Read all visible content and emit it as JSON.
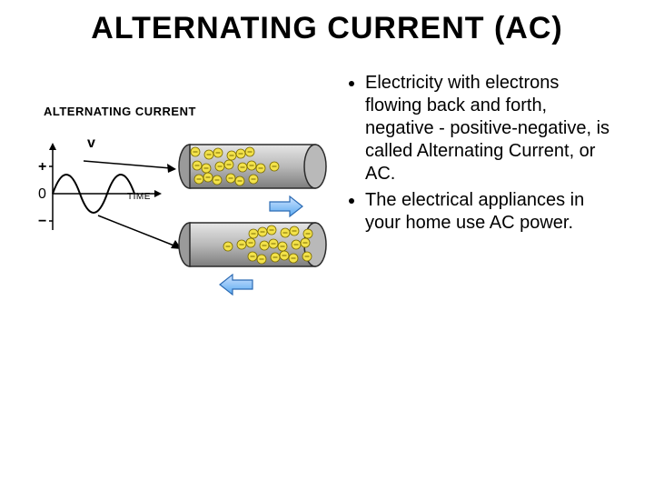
{
  "title": "ALTERNATING CURRENT (AC)",
  "title_fontsize": 34,
  "bullets": [
    "Electricity with electrons flowing back and forth, negative - positive-negative, is called Alternating Current, or AC.",
    "The electrical appliances in your home use AC power."
  ],
  "bullet_fontsize": 20,
  "diagram": {
    "title": "ALTERNATING CURRENT",
    "title_fontsize": 13,
    "sine": {
      "axis_color": "#000000",
      "curve_color": "#000000",
      "v_label": "v",
      "plus": "+",
      "zero": "0",
      "minus": "−",
      "time": "TIME",
      "label_fontsize": 13
    },
    "wire": {
      "outer_stroke": "#2b2b2b",
      "outer_fill": "#b9b9b9",
      "inner_fill": "#9a9a9a",
      "highlight": "#e6e6e6",
      "electron_fill": "#f3e24a",
      "electron_stroke": "#7a6b00",
      "electron_radius": 5
    },
    "arrow": {
      "fill_light": "#cfe3ff",
      "fill_dark": "#5aa9f0",
      "stroke": "#2c6bb3"
    },
    "pointer_color": "#000000"
  },
  "colors": {
    "background": "#ffffff",
    "text": "#000000"
  }
}
